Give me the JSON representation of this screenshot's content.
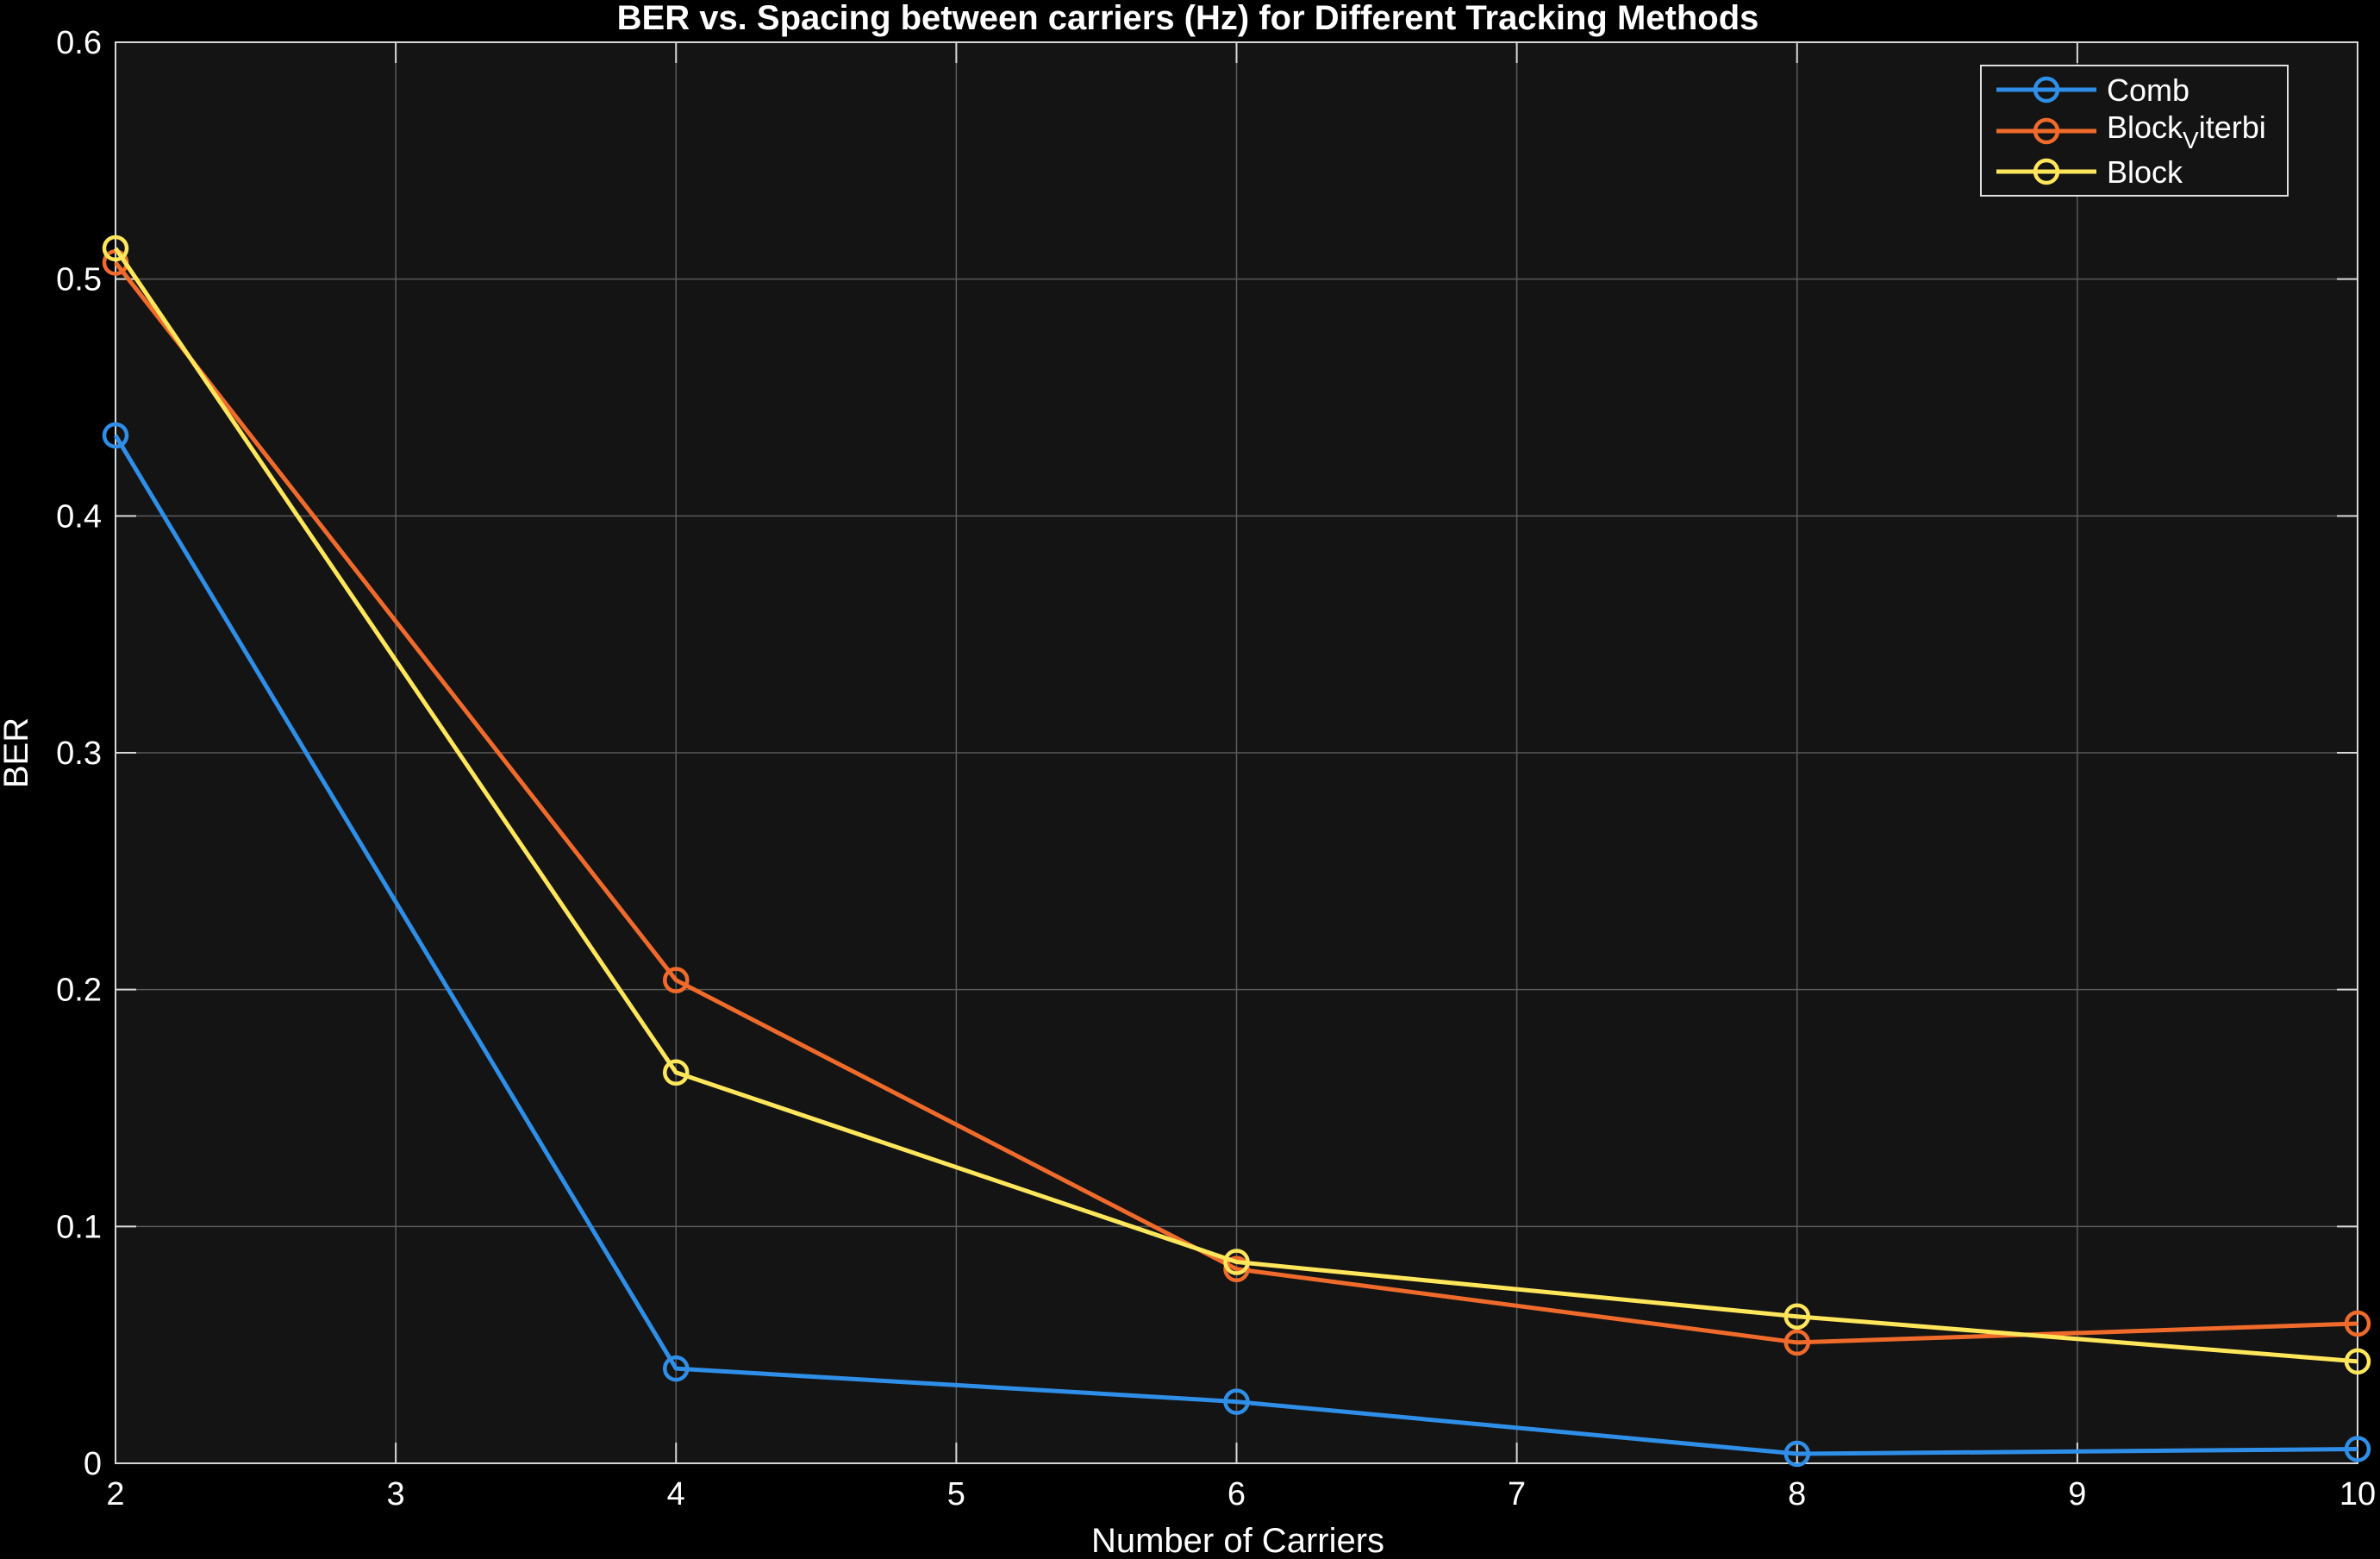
{
  "chart_data": {
    "type": "line",
    "title": "BER vs. Spacing between carriers (Hz) for Different Tracking Methods",
    "xlabel": "Number of Carriers",
    "ylabel": "BER",
    "xlim": [
      2,
      10
    ],
    "ylim": [
      0,
      0.6
    ],
    "xticks": [
      2,
      3,
      4,
      5,
      6,
      7,
      8,
      9,
      10
    ],
    "yticks": [
      0,
      0.1,
      0.2,
      0.3,
      0.4,
      0.5,
      0.6
    ],
    "ytick_labels": [
      "0",
      "0.1",
      "0.2",
      "0.3",
      "0.4",
      "0.5",
      "0.6"
    ],
    "grid": true,
    "legend_position": "top-right",
    "x": [
      2,
      4,
      6,
      8,
      10
    ],
    "series": [
      {
        "name": "Comb",
        "color": "#2f8fe8",
        "values": [
          0.434,
          0.04,
          0.026,
          0.004,
          0.006
        ],
        "marker": "circle"
      },
      {
        "name": "Block_Viterbi",
        "legend_parts": [
          "Block",
          "V",
          "iterbi"
        ],
        "color": "#f06b2b",
        "values": [
          0.507,
          0.204,
          0.082,
          0.051,
          0.059
        ],
        "marker": "circle"
      },
      {
        "name": "Block",
        "color": "#ffe65a",
        "values": [
          0.513,
          0.165,
          0.085,
          0.062,
          0.043
        ],
        "marker": "circle"
      }
    ]
  },
  "colors": {
    "figure_background": "#000000",
    "axes_background": "#141414",
    "grid": "#5a5a5a",
    "text": "#ffffff"
  }
}
